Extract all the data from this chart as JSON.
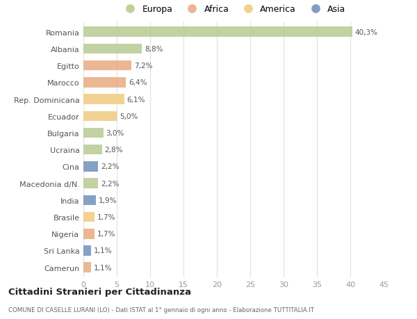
{
  "categories": [
    "Romania",
    "Albania",
    "Egitto",
    "Marocco",
    "Rep. Dominicana",
    "Ecuador",
    "Bulgaria",
    "Ucraina",
    "Cina",
    "Macedonia d/N.",
    "India",
    "Brasile",
    "Nigeria",
    "Sri Lanka",
    "Camerun"
  ],
  "values": [
    40.3,
    8.8,
    7.2,
    6.4,
    6.1,
    5.0,
    3.0,
    2.8,
    2.2,
    2.2,
    1.9,
    1.7,
    1.7,
    1.1,
    1.1
  ],
  "labels": [
    "40,3%",
    "8,8%",
    "7,2%",
    "6,4%",
    "6,1%",
    "5,0%",
    "3,0%",
    "2,8%",
    "2,2%",
    "2,2%",
    "1,9%",
    "1,7%",
    "1,7%",
    "1,1%",
    "1,1%"
  ],
  "colors": [
    "#b5c98e",
    "#b5c98e",
    "#e8a87c",
    "#e8a87c",
    "#f0c97a",
    "#f0c97a",
    "#b5c98e",
    "#b5c98e",
    "#6b8cba",
    "#b5c98e",
    "#6b8cba",
    "#f0c97a",
    "#e8a87c",
    "#6b8cba",
    "#e8a87c"
  ],
  "legend_labels": [
    "Europa",
    "Africa",
    "America",
    "Asia"
  ],
  "legend_colors": [
    "#b5c98e",
    "#e8a87c",
    "#f0c97a",
    "#6b8cba"
  ],
  "title": "Cittadini Stranieri per Cittadinanza",
  "subtitle": "COMUNE DI CASELLE LURANI (LO) - Dati ISTAT al 1° gennaio di ogni anno - Elaborazione TUTTITALIA.IT",
  "xlim": [
    0,
    45
  ],
  "xticks": [
    0,
    5,
    10,
    15,
    20,
    25,
    30,
    35,
    40,
    45
  ],
  "background_color": "#ffffff",
  "grid_color": "#e0e0e0",
  "bar_height": 0.6
}
